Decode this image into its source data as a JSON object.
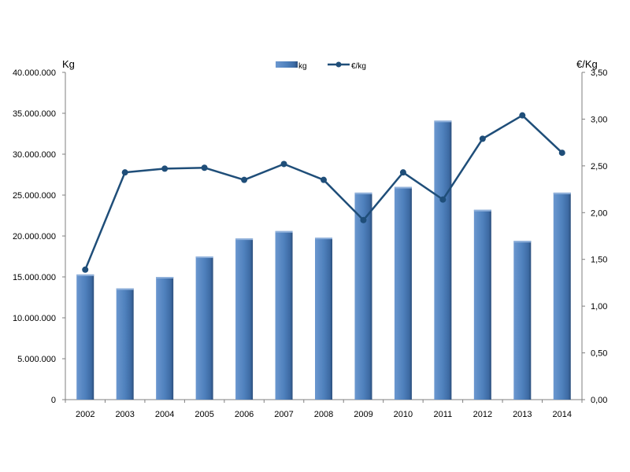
{
  "chart_data": {
    "type": "bar",
    "categories": [
      "2002",
      "2003",
      "2004",
      "2005",
      "2006",
      "2007",
      "2008",
      "2009",
      "2010",
      "2011",
      "2012",
      "2013",
      "2014"
    ],
    "series": [
      {
        "name": "kg",
        "type": "bar",
        "axis": "left",
        "values": [
          15300000,
          13600000,
          15000000,
          17500000,
          19700000,
          20600000,
          19800000,
          25300000,
          26000000,
          34100000,
          23200000,
          19400000,
          25300000
        ]
      },
      {
        "name": "€/kg",
        "type": "line",
        "axis": "right",
        "values": [
          1.39,
          2.43,
          2.47,
          2.48,
          2.35,
          2.52,
          2.35,
          1.92,
          2.43,
          2.14,
          2.79,
          3.04,
          2.64
        ]
      }
    ],
    "ylabel_left": "Kg",
    "ylabel_right": "€/Kg",
    "ylim_left": [
      0,
      40000000
    ],
    "ylim_right": [
      0,
      3.5
    ],
    "yticks_left": [
      "0",
      "5.000.000",
      "10.000.000",
      "15.000.000",
      "20.000.000",
      "25.000.000",
      "30.000.000",
      "35.000.000",
      "40.000.000"
    ],
    "yticks_right": [
      "0,00",
      "0,50",
      "1,00",
      "1,50",
      "2,00",
      "2,50",
      "3,00",
      "3,50"
    ],
    "legend_position": "top-center",
    "grid": false,
    "colors": {
      "bar": "#4f81bd",
      "line": "#1f4e79"
    }
  }
}
